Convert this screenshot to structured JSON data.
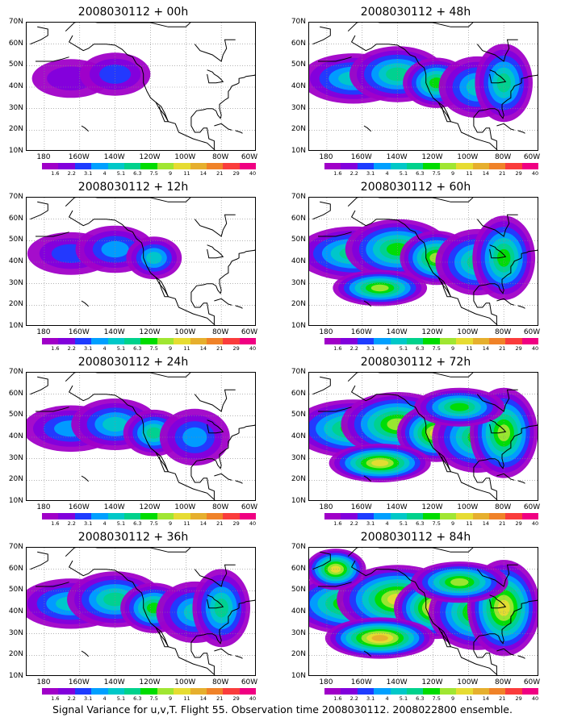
{
  "panels": [
    {
      "title": "2008030112 + 00h",
      "level": 0
    },
    {
      "title": "2008030112 + 48h",
      "level": 3
    },
    {
      "title": "2008030112 + 12h",
      "level": 1
    },
    {
      "title": "2008030112 + 60h",
      "level": 4
    },
    {
      "title": "2008030112 + 24h",
      "level": 2
    },
    {
      "title": "2008030112 + 72h",
      "level": 5
    },
    {
      "title": "2008030112 + 36h",
      "level": 3
    },
    {
      "title": "2008030112 + 84h",
      "level": 6
    }
  ],
  "lat_labels": [
    "70N",
    "60N",
    "50N",
    "40N",
    "30N",
    "20N",
    "10N"
  ],
  "lon_labels": [
    "180",
    "160W",
    "140W",
    "120W",
    "100W",
    "80W",
    "60W"
  ],
  "colorbar": {
    "labels": [
      "1.6",
      "2.2",
      "3.1",
      "4",
      "5.1",
      "6.3",
      "7.5",
      "9",
      "11",
      "14",
      "21",
      "29",
      "40"
    ],
    "colors": [
      "#a000c8",
      "#8200dc",
      "#1e3cff",
      "#00a0ff",
      "#00c8c8",
      "#00d28c",
      "#00dc00",
      "#a0e632",
      "#e6dc32",
      "#e6af2d",
      "#f08228",
      "#fa3c3c",
      "#f00082"
    ]
  },
  "caption": "Signal Variance for u,v,T. Flight 55. Observation time 2008030112. 2008022800 ensemble."
}
